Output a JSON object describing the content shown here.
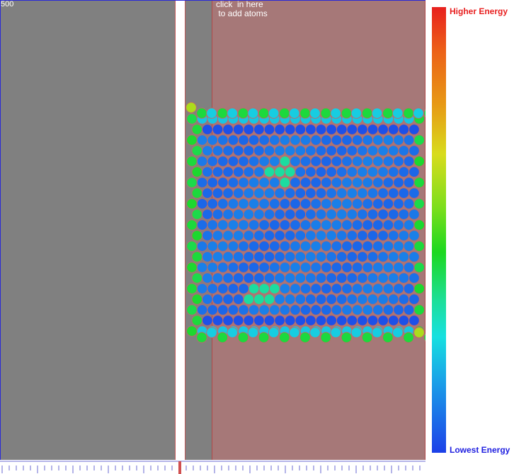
{
  "simulation": {
    "time_value": "500",
    "drop_zone_hint": "click  in here\n to add atoms"
  },
  "legend": {
    "high_label": "Higher Energy",
    "low_label": "Lowest Energy"
  },
  "colors": {
    "background": "#808080",
    "drop_zone": "#a67878",
    "atom_outline": "#c06868"
  }
}
